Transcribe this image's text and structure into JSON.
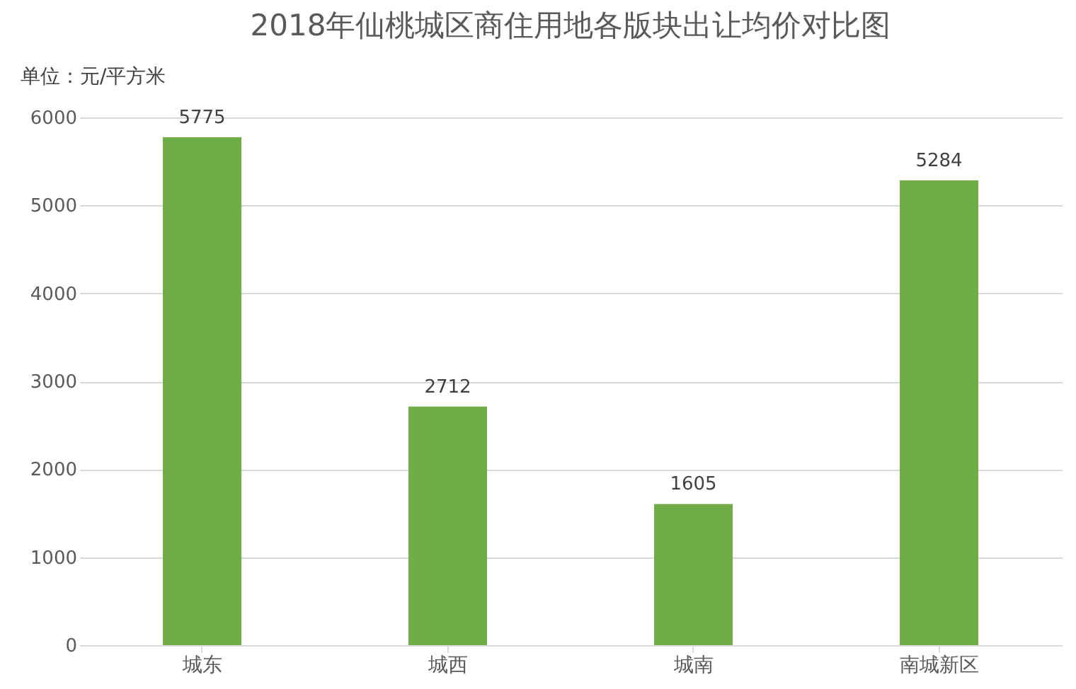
{
  "chart_data": {
    "type": "bar",
    "title": "2018年仙桃城区商住用地各版块出让均价对比图",
    "ylabel": "单位：元/平方米",
    "categories": [
      "城东",
      "城西",
      "城南",
      "南城新区"
    ],
    "values": [
      5775,
      2712,
      1605,
      5284
    ],
    "color": "#70ad47",
    "ylim": [
      0,
      6000
    ],
    "yticks": [
      0,
      1000,
      2000,
      3000,
      4000,
      5000,
      6000
    ],
    "grid": "y",
    "data_labels": true
  }
}
